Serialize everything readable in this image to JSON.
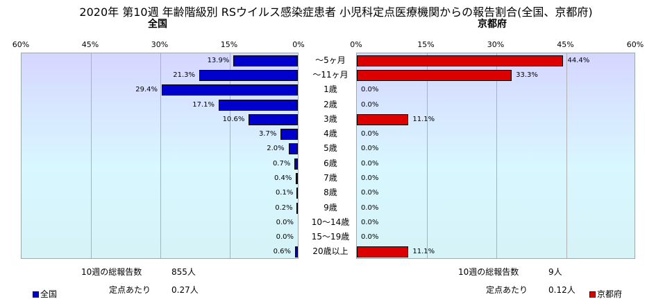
{
  "chart_data": {
    "type": "bar",
    "title": "2020年 第10週 年齢階級別 RSウイルス感染症患者 小児科定点医療機関からの報告割合(全国、京都府)",
    "categories": [
      "～5ヶ月",
      "～11ヶ月",
      "1歳",
      "2歳",
      "3歳",
      "4歳",
      "5歳",
      "6歳",
      "7歳",
      "8歳",
      "9歳",
      "10～14歳",
      "15～19歳",
      "20歳以上"
    ],
    "series": [
      {
        "name": "全国",
        "panel_title": "全国",
        "color": "#0000cc",
        "values": [
          13.9,
          21.3,
          29.4,
          17.1,
          10.6,
          3.7,
          2.0,
          0.7,
          0.4,
          0.1,
          0.2,
          0.0,
          0.0,
          0.6
        ],
        "labels": [
          "13.9%",
          "21.3%",
          "29.4%",
          "17.1%",
          "10.6%",
          "3.7%",
          "2.0%",
          "0.7%",
          "0.4%",
          "0.1%",
          "0.2%",
          "0.0%",
          "0.0%",
          "0.6%"
        ],
        "xticks": [
          "60%",
          "45%",
          "30%",
          "15%",
          "0%"
        ],
        "xlim": [
          0,
          60
        ],
        "direction": "right-to-left",
        "legend": "全国",
        "legend_position": "bottom-left"
      },
      {
        "name": "京都府",
        "panel_title": "京都府",
        "color": "#dd0000",
        "values": [
          44.4,
          33.3,
          0.0,
          0.0,
          11.1,
          0.0,
          0.0,
          0.0,
          0.0,
          0.0,
          0.0,
          0.0,
          0.0,
          11.1
        ],
        "labels": [
          "44.4%",
          "33.3%",
          "0.0%",
          "0.0%",
          "11.1%",
          "0.0%",
          "0.0%",
          "0.0%",
          "0.0%",
          "0.0%",
          "0.0%",
          "0.0%",
          "0.0%",
          "11.1%"
        ],
        "xticks": [
          "0%",
          "15%",
          "30%",
          "45%",
          "60%"
        ],
        "xlim": [
          0,
          60
        ],
        "direction": "left-to-right",
        "legend": "京都府",
        "legend_position": "bottom-right"
      }
    ],
    "grid": true
  },
  "footer": {
    "national": {
      "total_label": "10週の総報告数",
      "total_value": "855人",
      "per_label": "定点あたり",
      "per_value": "0.27人"
    },
    "kyoto": {
      "total_label": "10週の総報告数",
      "total_value": "9人",
      "per_label": "定点あたり",
      "per_value": "0.12人"
    }
  }
}
